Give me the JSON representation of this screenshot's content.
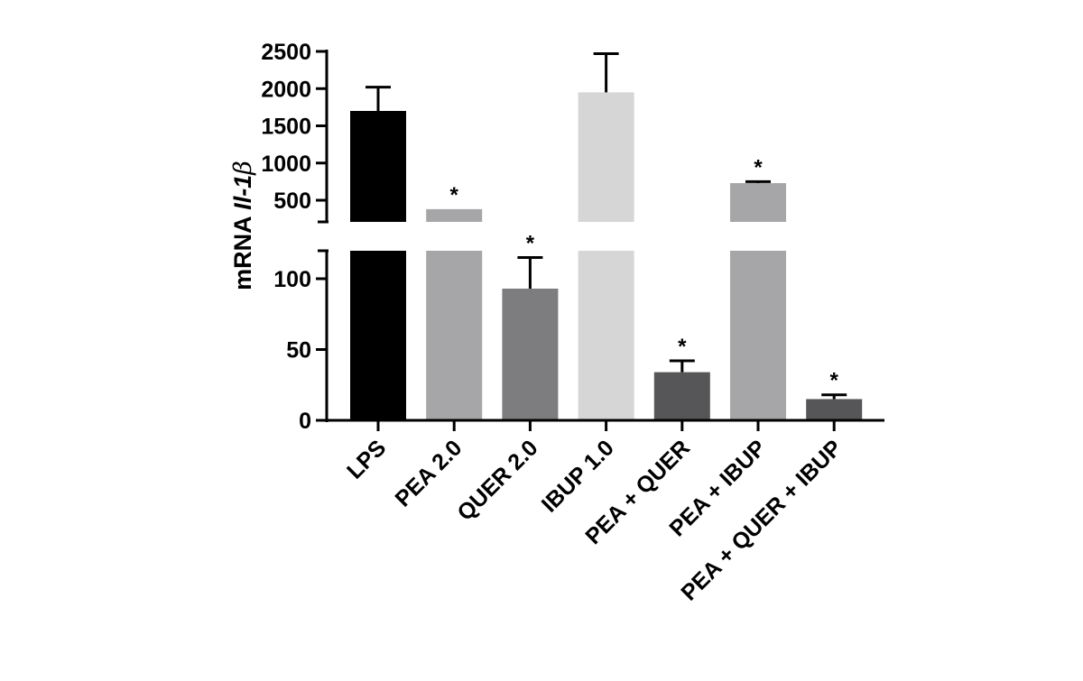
{
  "chart_data": {
    "type": "bar",
    "categories": [
      "LPS",
      "PEA 2.0",
      "QUER 2.0",
      "IBUP 1.0",
      "PEA + QUER",
      "PEA + IBUP",
      "PEA + QUER + IBUP"
    ],
    "values": [
      1700,
      380,
      93,
      1950,
      34,
      730,
      15
    ],
    "error_upper": [
      2020,
      380,
      115,
      2470,
      42,
      750,
      18
    ],
    "significance": [
      "",
      "*",
      "*",
      "",
      "*",
      "*",
      "*"
    ],
    "colors": [
      "#000000",
      "#a6a6a8",
      "#7d7d7f",
      "#d6d6d6",
      "#565658",
      "#a6a6a8",
      "#565658"
    ],
    "ylabel_prefix": "mRNA",
    "ylabel_italic": "Il-1",
    "ylabel_symbol": "β",
    "ylim_lower": [
      0,
      120
    ],
    "ylim_upper": [
      200,
      2500
    ],
    "yticks_lower": [
      0,
      50,
      100
    ],
    "yticks_upper": [
      500,
      1000,
      1500,
      2000,
      2500
    ],
    "axis_break": true,
    "grid": false,
    "legend": "none"
  }
}
